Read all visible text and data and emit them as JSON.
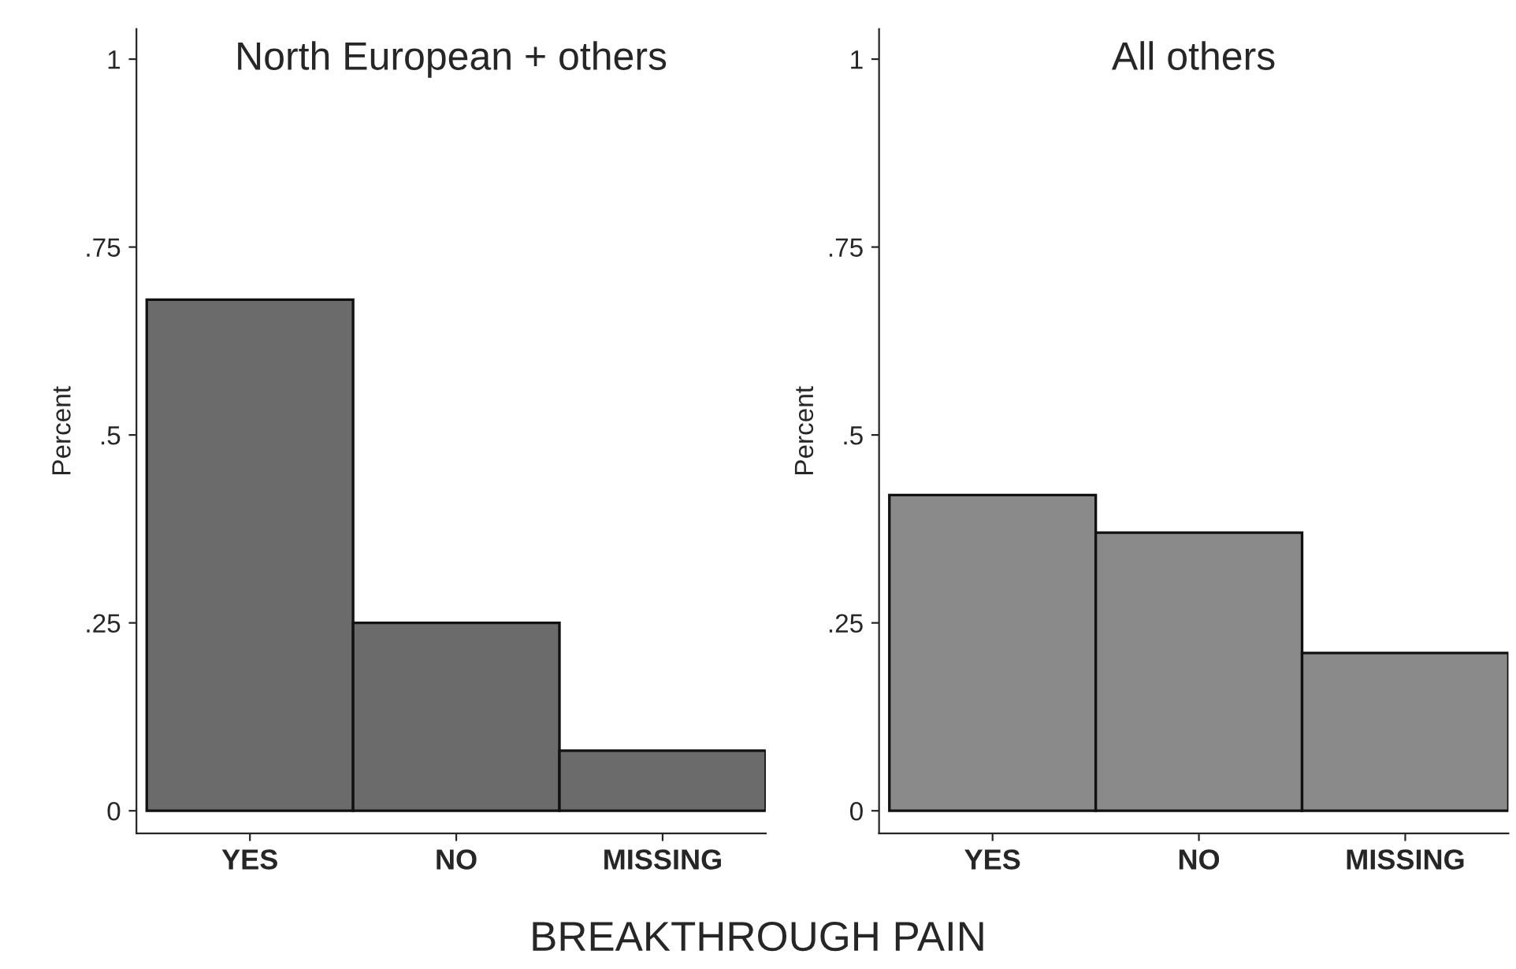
{
  "chart_data": [
    {
      "type": "bar",
      "title": "North European + others",
      "xlabel": "BREAKTHROUGH PAIN",
      "ylabel": "Percent",
      "categories": [
        "YES",
        "NO",
        "MISSING"
      ],
      "values": [
        0.68,
        0.25,
        0.08
      ],
      "color": "#6b6b6b",
      "ylim": [
        -0.03,
        1.04
      ],
      "yticks": [
        {
          "value": 0,
          "label": "0"
        },
        {
          "value": 0.25,
          "label": ".25"
        },
        {
          "value": 0.5,
          "label": ".5"
        },
        {
          "value": 0.75,
          "label": ".75"
        },
        {
          "value": 1,
          "label": "1"
        }
      ],
      "grid": false,
      "legend": false
    },
    {
      "type": "bar",
      "title": "All others",
      "ylabel": "Percent",
      "categories": [
        "YES",
        "NO",
        "MISSING"
      ],
      "values": [
        0.42,
        0.37,
        0.21
      ],
      "color": "#8a8a8a",
      "ylim": [
        -0.03,
        1.04
      ],
      "yticks": [
        {
          "value": 0,
          "label": "0"
        },
        {
          "value": 0.25,
          "label": ".25"
        },
        {
          "value": 0.5,
          "label": ".5"
        },
        {
          "value": 0.75,
          "label": ".75"
        },
        {
          "value": 1,
          "label": "1"
        }
      ],
      "grid": false,
      "legend": false
    }
  ]
}
